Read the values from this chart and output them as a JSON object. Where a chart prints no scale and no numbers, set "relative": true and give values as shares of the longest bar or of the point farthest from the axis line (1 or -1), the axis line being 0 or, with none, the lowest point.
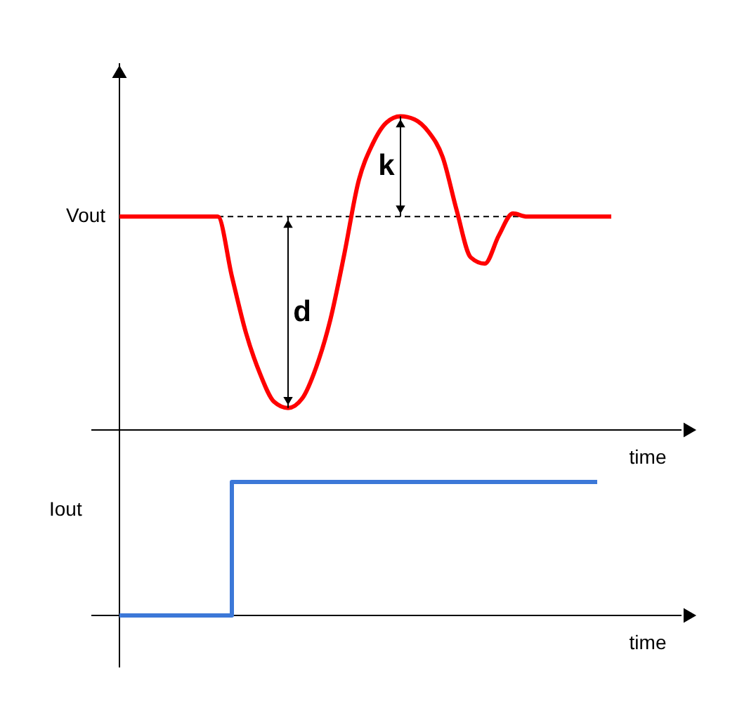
{
  "chart_data": [
    {
      "type": "line",
      "ylabel": "Vout",
      "xlabel": "time",
      "relative": true,
      "categories": [
        null,
        null,
        null,
        null,
        null,
        null,
        null,
        null,
        null,
        null,
        null,
        null,
        null,
        null,
        null,
        null,
        null,
        null,
        null,
        null,
        null,
        null,
        null,
        null,
        null,
        null,
        null,
        null,
        null,
        null,
        null,
        null,
        null,
        null,
        null,
        null
      ],
      "series": [
        {
          "color": "#ff0000",
          "values": [
            0.68,
            0.68,
            0.68,
            0.68,
            0.68,
            0.68,
            0.68,
            0.68,
            0.49,
            0.31,
            0.18,
            0.09,
            0.07,
            0.1,
            0.2,
            0.35,
            0.56,
            0.79,
            0.91,
            0.98,
            1.0,
            0.99,
            0.95,
            0.87,
            0.7,
            0.55,
            0.53,
            0.62,
            0.69,
            0.68,
            0.68,
            0.68,
            0.68,
            0.68,
            0.68,
            0.68
          ]
        }
      ],
      "ref_lines": [
        {
          "axis": "y",
          "value": 0.68,
          "line_style": "dashed"
        }
      ],
      "annotations": [
        "d",
        "k"
      ]
    },
    {
      "type": "step",
      "ylabel": "Iout",
      "xlabel": "time",
      "relative": true,
      "categories": [
        null,
        null,
        null,
        null,
        null,
        null,
        null,
        null,
        null,
        null,
        null,
        null,
        null,
        null,
        null,
        null,
        null,
        null,
        null,
        null,
        null,
        null,
        null,
        null,
        null,
        null,
        null,
        null,
        null,
        null,
        null,
        null,
        null,
        null,
        null
      ],
      "series": [
        {
          "color": "#3c78d8",
          "values": [
            0,
            0,
            0,
            0,
            0,
            0,
            0,
            0,
            1,
            1,
            1,
            1,
            1,
            1,
            1,
            1,
            1,
            1,
            1,
            1,
            1,
            1,
            1,
            1,
            1,
            1,
            1,
            1,
            1,
            1,
            1,
            1,
            1,
            1,
            1
          ]
        }
      ]
    }
  ]
}
